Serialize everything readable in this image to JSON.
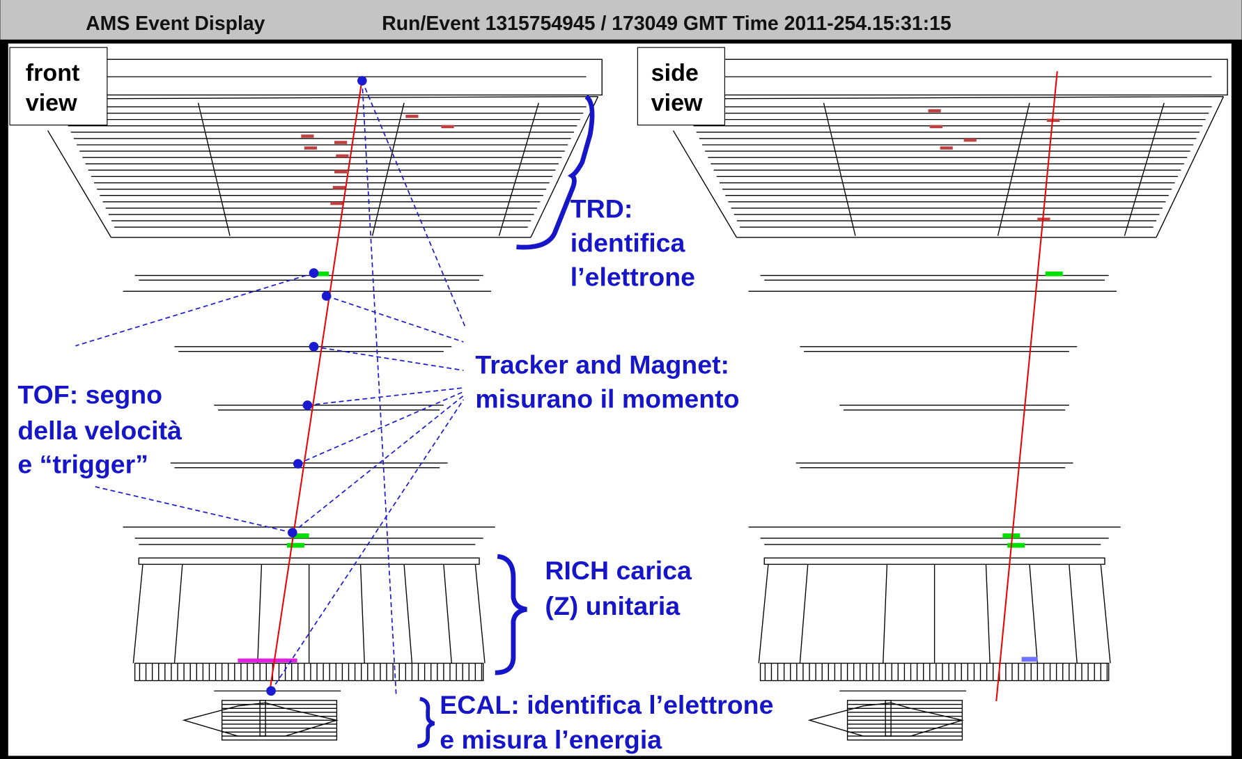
{
  "header": {
    "title": "AMS Event Display",
    "run_info": "Run/Event 1315754945 / 173049  GMT Time 2011-254.15:31:15"
  },
  "panels": [
    {
      "label": [
        "front",
        "view"
      ]
    },
    {
      "label": [
        "side",
        "view"
      ]
    }
  ],
  "annotations": {
    "trd": [
      "TRD:",
      "identifica",
      "l’elettrone"
    ],
    "tracker": [
      "Tracker and Magnet:",
      "misurano il momento"
    ],
    "tof": [
      "TOF: segno",
      "della velocità",
      "e “trigger”"
    ],
    "rich": [
      "RICH carica",
      "(Z) unitaria"
    ],
    "ecal": [
      "ECAL: identifica l’elettrone",
      "e misura l’energia"
    ]
  }
}
